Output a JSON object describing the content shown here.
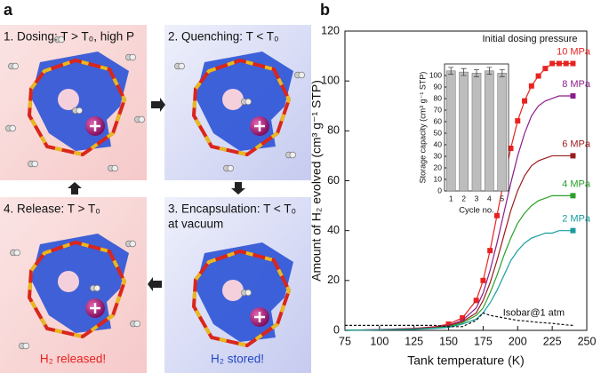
{
  "panel_a": {
    "label": "a",
    "steps": [
      {
        "title": "1. Dosing: T > T₀, high P"
      },
      {
        "title": "2. Quenching: T < T₀"
      },
      {
        "title": "3. Encapsulation: T < T₀",
        "note": "at vacuum"
      },
      {
        "title": "4. Release: T > T₀"
      }
    ],
    "status": {
      "released": "H₂ released!",
      "stored": "H₂ stored!"
    }
  },
  "chart_data": [
    {
      "type": "line",
      "panel_label": "b",
      "xlabel": "Tank temperature (K)",
      "ylabel": "Amount of H₂ evolved (cm³ g⁻¹ STP)",
      "annotation": "Initial dosing pressure",
      "x": [
        75,
        100,
        125,
        140,
        150,
        160,
        170,
        175,
        180,
        185,
        190,
        195,
        200,
        205,
        210,
        215,
        220,
        225,
        230,
        235,
        240
      ],
      "series": [
        {
          "name": "10 MPa",
          "color": "#e8231f",
          "marker": "all",
          "values": [
            0,
            0.3,
            0.8,
            1.5,
            2.5,
            5,
            12,
            20,
            32,
            46,
            60,
            73,
            84,
            92,
            98,
            102,
            105,
            107,
            107,
            107,
            107
          ]
        },
        {
          "name": "8 MPa",
          "color": "#8b1e8c",
          "marker": "last",
          "values": [
            0,
            0.3,
            0.7,
            1.3,
            2,
            4,
            9,
            15,
            24,
            35,
            47,
            59,
            70,
            79,
            86,
            90,
            92,
            93,
            94,
            94,
            94
          ]
        },
        {
          "name": "6 MPa",
          "color": "#9a1c1c",
          "marker": "last",
          "values": [
            0,
            0.2,
            0.6,
            1.1,
            1.8,
            3.5,
            7,
            12,
            19,
            28,
            38,
            48,
            56,
            62,
            66,
            68,
            69,
            70,
            70,
            70,
            70
          ]
        },
        {
          "name": "4 MPa",
          "color": "#2aa02a",
          "marker": "last",
          "values": [
            0,
            0.2,
            0.5,
            1,
            1.5,
            3,
            6,
            9,
            15,
            22,
            30,
            37,
            43,
            47,
            50,
            52,
            53,
            54,
            54,
            54,
            54
          ]
        },
        {
          "name": "2 MPa",
          "color": "#1a9c9c",
          "marker": "last",
          "values": [
            0,
            0.2,
            0.4,
            0.8,
            1.2,
            2.5,
            4.5,
            7,
            11,
            16,
            22,
            28,
            32,
            35,
            37,
            38,
            39,
            39,
            40,
            40,
            40
          ]
        },
        {
          "name": "Isobar@1 atm",
          "color": "#111111",
          "marker": "none",
          "dash": true,
          "values": [
            2,
            2,
            2,
            2,
            1.5,
            1.5,
            4,
            7,
            6,
            5.5,
            5,
            4.5,
            4,
            3.8,
            3.5,
            3.2,
            3,
            2.8,
            2.5,
            2.2,
            2
          ]
        }
      ],
      "xlim": [
        75,
        250
      ],
      "xticks": [
        75,
        100,
        125,
        150,
        175,
        200,
        225,
        250
      ],
      "ylim": [
        0,
        120
      ],
      "yticks": [
        0,
        20,
        40,
        60,
        80,
        100,
        120
      ]
    },
    {
      "type": "bar",
      "xlabel": "Cycle no.",
      "ylabel": "Storage capacity (cm³ g⁻¹ STP)",
      "categories": [
        "1",
        "2",
        "3",
        "4",
        "5"
      ],
      "values": [
        104,
        103,
        102,
        104,
        102
      ],
      "errors": [
        3,
        3,
        3,
        3,
        3
      ],
      "color": "#bdbdbd",
      "ylim": [
        0,
        110
      ],
      "yticks": [
        0,
        10,
        20,
        30,
        40,
        50,
        60,
        70,
        80,
        90,
        100
      ]
    }
  ]
}
